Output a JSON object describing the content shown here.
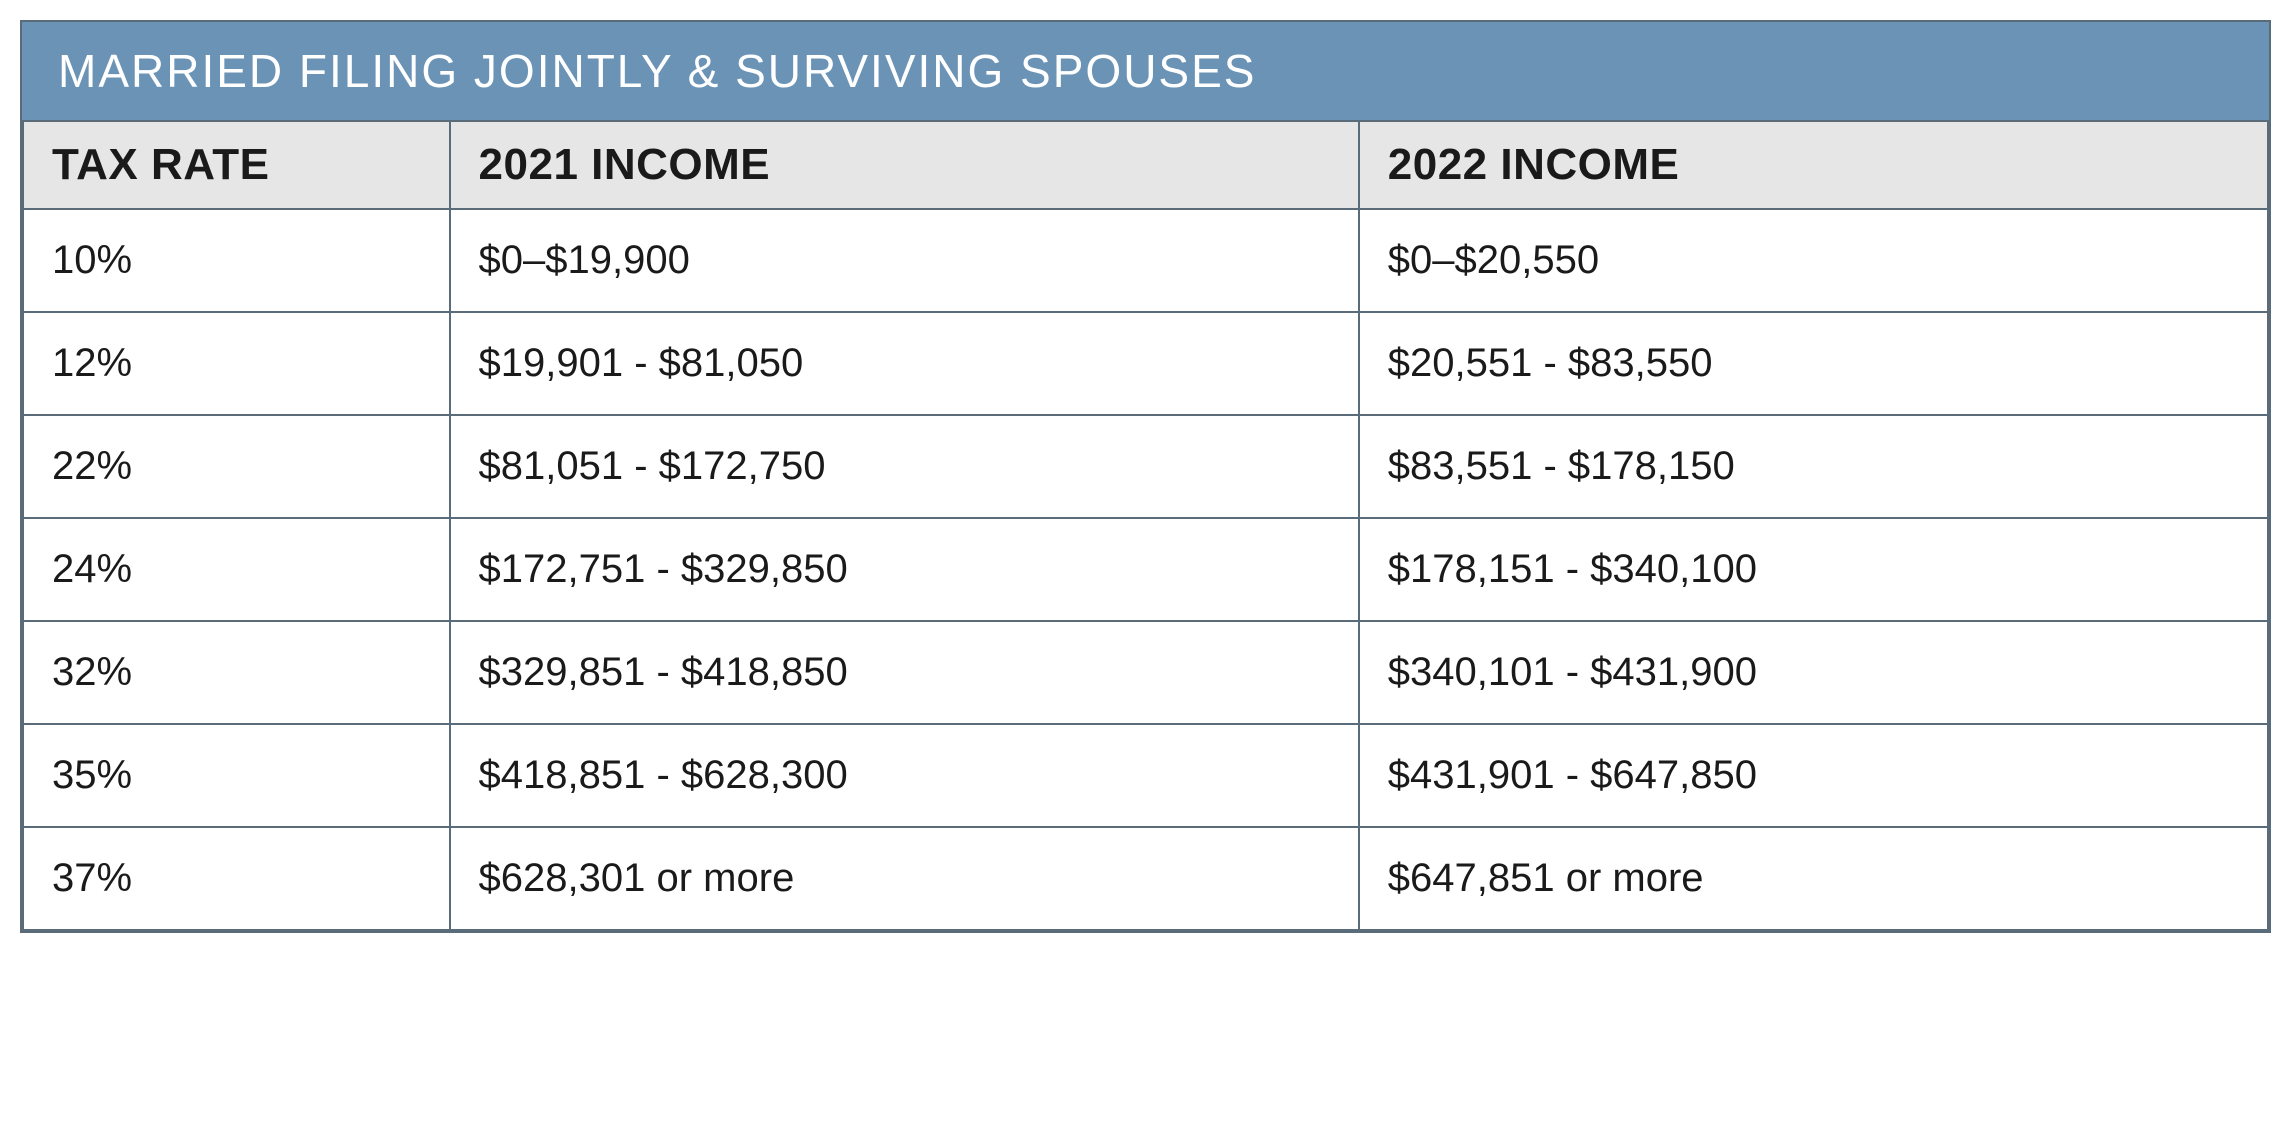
{
  "table": {
    "title": "MARRIED FILING JOINTLY & SURVIVING SPOUSES",
    "title_bg": "#6a93b6",
    "title_color": "#ffffff",
    "title_fontsize": 46,
    "title_letterspacing": 2,
    "header_bg": "#e6e6e6",
    "header_fontsize": 44,
    "header_color": "#1a1a1a",
    "cell_bg": "#ffffff",
    "cell_fontsize": 40,
    "cell_color": "#1a1a1a",
    "border_color": "#5a6b7a",
    "border_width": 2,
    "column_widths": [
      "19%",
      "40.5%",
      "40.5%"
    ],
    "columns": [
      "TAX RATE",
      "2021 INCOME",
      "2022 INCOME"
    ],
    "rows": [
      [
        "10%",
        "$0–$19,900",
        "$0–$20,550"
      ],
      [
        "12%",
        "$19,901 - $81,050",
        "$20,551 - $83,550"
      ],
      [
        "22%",
        "$81,051 - $172,750",
        "$83,551 - $178,150"
      ],
      [
        "24%",
        "$172,751 - $329,850",
        "$178,151 - $340,100"
      ],
      [
        "32%",
        "$329,851 - $418,850",
        "$340,101 - $431,900"
      ],
      [
        "35%",
        "$418,851 - $628,300",
        "$431,901 - $647,850"
      ],
      [
        "37%",
        "$628,301 or more",
        "$647,851 or more"
      ]
    ]
  }
}
